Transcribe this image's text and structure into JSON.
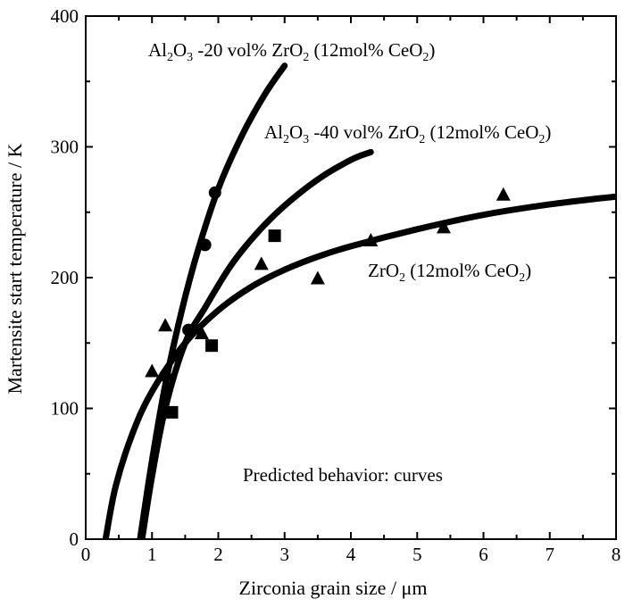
{
  "chart_data": {
    "type": "scatter",
    "xlabel": "Zirconia grain size / μm",
    "ylabel": "Martensite start temperature / K",
    "xlim": [
      0,
      8
    ],
    "ylim": [
      0,
      400
    ],
    "x_ticks": [
      "0",
      "1",
      "2",
      "3",
      "4",
      "5",
      "6",
      "7",
      "8"
    ],
    "y_ticks": [
      "0",
      "100",
      "200",
      "300",
      "400"
    ],
    "grid": false,
    "annotations": [
      {
        "name": "label-al2o3-20",
        "parts": [
          {
            "text": "Al"
          },
          {
            "text": "2",
            "sub": true
          },
          {
            "text": "O"
          },
          {
            "text": "3",
            "sub": true
          },
          {
            "text": " -20 vol% ZrO"
          },
          {
            "text": "2",
            "sub": true
          },
          {
            "text": " (12mol% CeO"
          },
          {
            "text": "2",
            "sub": true
          },
          {
            "text": ")"
          }
        ]
      },
      {
        "name": "label-al2o3-40",
        "parts": [
          {
            "text": "Al"
          },
          {
            "text": "2",
            "sub": true
          },
          {
            "text": "O"
          },
          {
            "text": "3",
            "sub": true
          },
          {
            "text": " -40 vol% ZrO"
          },
          {
            "text": "2",
            "sub": true
          },
          {
            "text": " (12mol% CeO"
          },
          {
            "text": "2",
            "sub": true
          },
          {
            "text": ")"
          }
        ]
      },
      {
        "name": "label-zro2",
        "parts": [
          {
            "text": "ZrO"
          },
          {
            "text": "2",
            "sub": true
          },
          {
            "text": " (12mol% CeO"
          },
          {
            "text": "2",
            "sub": true
          },
          {
            "text": ")"
          }
        ]
      },
      {
        "name": "label-predicted",
        "parts": [
          {
            "text": "Predicted behavior: curves"
          }
        ]
      }
    ],
    "series": [
      {
        "marker": "circle",
        "points": [
          [
            1.2,
            125
          ],
          [
            1.55,
            160
          ],
          [
            1.8,
            225
          ],
          [
            1.95,
            265
          ]
        ],
        "curve": [
          [
            0.82,
            0
          ],
          [
            1.0,
            60
          ],
          [
            1.2,
            118
          ],
          [
            1.45,
            175
          ],
          [
            1.7,
            222
          ],
          [
            2.0,
            268
          ],
          [
            2.35,
            308
          ],
          [
            2.7,
            340
          ],
          [
            3.0,
            362
          ]
        ]
      },
      {
        "marker": "square",
        "points": [
          [
            1.3,
            97
          ],
          [
            1.9,
            148
          ],
          [
            2.85,
            232
          ]
        ],
        "curve": [
          [
            0.85,
            0
          ],
          [
            1.0,
            48
          ],
          [
            1.2,
            100
          ],
          [
            1.5,
            150
          ],
          [
            1.8,
            177
          ],
          [
            2.2,
            210
          ],
          [
            2.6,
            235
          ],
          [
            3.0,
            255
          ],
          [
            3.5,
            275
          ],
          [
            4.0,
            290
          ],
          [
            4.3,
            296
          ]
        ]
      },
      {
        "marker": "triangle",
        "points": [
          [
            1.0,
            128
          ],
          [
            1.2,
            163
          ],
          [
            1.75,
            157
          ],
          [
            2.65,
            210
          ],
          [
            3.5,
            199
          ],
          [
            4.3,
            228
          ],
          [
            5.4,
            238
          ],
          [
            6.3,
            263
          ]
        ],
        "curve": [
          [
            0.3,
            0
          ],
          [
            0.45,
            40
          ],
          [
            0.7,
            80
          ],
          [
            1.0,
            113
          ],
          [
            1.5,
            150
          ],
          [
            2.0,
            175
          ],
          [
            2.5,
            193
          ],
          [
            3.0,
            206
          ],
          [
            3.5,
            216
          ],
          [
            4.0,
            224
          ],
          [
            5.0,
            237
          ],
          [
            6.0,
            248
          ],
          [
            7.0,
            256
          ],
          [
            8.0,
            262
          ]
        ]
      }
    ]
  }
}
